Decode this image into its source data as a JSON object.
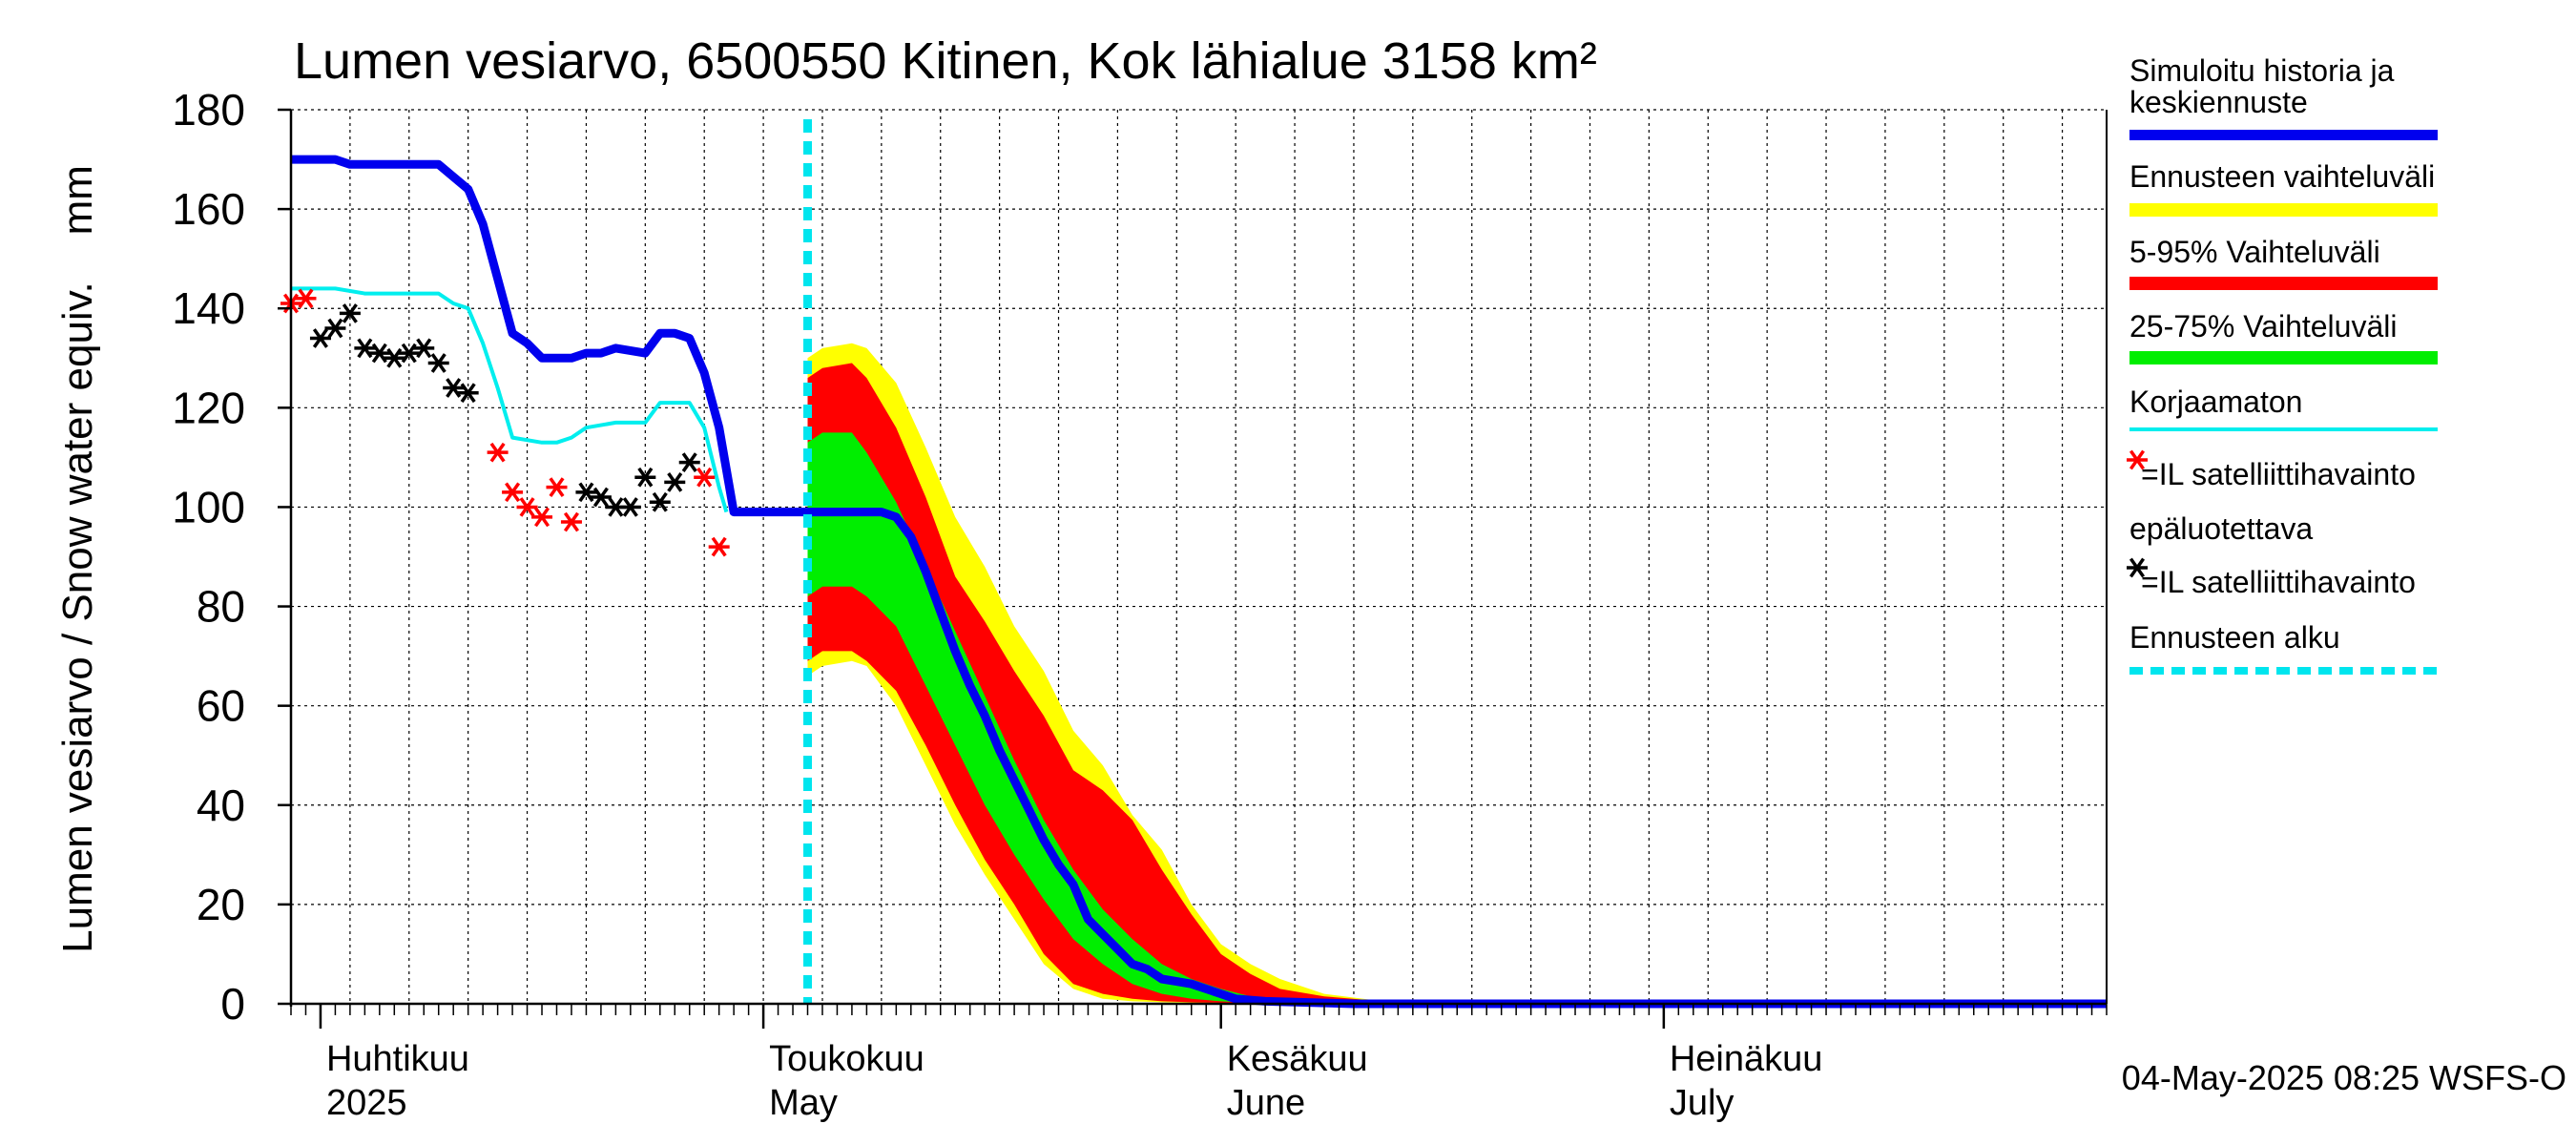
{
  "chart_data": {
    "type": "line",
    "title": "Lumen vesiarvo, 6500550 Kitinen, Kok lähialue 3158 km²",
    "ylabel": "Lumen vesiarvo / Snow water equiv.    mm",
    "ylim": [
      0,
      180
    ],
    "yticks": [
      0,
      20,
      40,
      60,
      80,
      100,
      120,
      140,
      160,
      180
    ],
    "xlim": [
      "2025-03-30",
      "2025-07-31"
    ],
    "grid": true,
    "month_labels": [
      {
        "fi": "Huhtikuu",
        "en": "2025",
        "date": "2025-04-01"
      },
      {
        "fi": "Toukokuu",
        "en": "May",
        "date": "2025-05-01"
      },
      {
        "fi": "Kesäkuu",
        "en": "June",
        "date": "2025-06-01"
      },
      {
        "fi": "Heinäkuu",
        "en": "July",
        "date": "2025-07-01"
      }
    ],
    "forecast_start": "2025-05-04",
    "footer": "04-May-2025 08:25 WSFS-O",
    "legend": [
      {
        "label": "Simuloitu historia ja keskiennuste",
        "color": "#0000ee",
        "kind": "thick-line"
      },
      {
        "label": "Ennusteen vaihteluväli",
        "color": "#ffff00",
        "kind": "band"
      },
      {
        "label": "5-95% Vaihteluväli",
        "color": "#ff0000",
        "kind": "band"
      },
      {
        "label": "25-75% Vaihteluväli",
        "color": "#00ee00",
        "kind": "band"
      },
      {
        "label": "Korjaamaton",
        "color": "#00eeee",
        "kind": "line"
      },
      {
        "label": "=IL satelliittihavainto epäluotettava",
        "color": "#ff0000",
        "kind": "marker"
      },
      {
        "label": "=IL satelliittihavainto",
        "color": "#000000",
        "kind": "marker"
      },
      {
        "label": "Ennusteen alku",
        "color": "#00e5ee",
        "kind": "dashed"
      }
    ],
    "series": [
      {
        "name": "Simuloitu historia ja keskiennuste",
        "color": "#0000ee",
        "points": [
          [
            "2025-03-30",
            170
          ],
          [
            "2025-04-01",
            170
          ],
          [
            "2025-04-02",
            170
          ],
          [
            "2025-04-03",
            169
          ],
          [
            "2025-04-06",
            169
          ],
          [
            "2025-04-08",
            169
          ],
          [
            "2025-04-09",
            169
          ],
          [
            "2025-04-11",
            164
          ],
          [
            "2025-04-12",
            157
          ],
          [
            "2025-04-13",
            146
          ],
          [
            "2025-04-14",
            135
          ],
          [
            "2025-04-15",
            133
          ],
          [
            "2025-04-16",
            130
          ],
          [
            "2025-04-18",
            130
          ],
          [
            "2025-04-19",
            131
          ],
          [
            "2025-04-20",
            131
          ],
          [
            "2025-04-21",
            132
          ],
          [
            "2025-04-23",
            131
          ],
          [
            "2025-04-24",
            135
          ],
          [
            "2025-04-25",
            135
          ],
          [
            "2025-04-26",
            134
          ],
          [
            "2025-04-27",
            127
          ],
          [
            "2025-04-28",
            116
          ],
          [
            "2025-04-29",
            99
          ],
          [
            "2025-05-01",
            99
          ],
          [
            "2025-05-02",
            99
          ],
          [
            "2025-05-03",
            99
          ],
          [
            "2025-05-04",
            99
          ],
          [
            "2025-05-05",
            99
          ],
          [
            "2025-05-06",
            99
          ],
          [
            "2025-05-07",
            99
          ],
          [
            "2025-05-08",
            99
          ],
          [
            "2025-05-09",
            99
          ],
          [
            "2025-05-10",
            98
          ],
          [
            "2025-05-11",
            94
          ],
          [
            "2025-05-12",
            87
          ],
          [
            "2025-05-13",
            79
          ],
          [
            "2025-05-14",
            71
          ],
          [
            "2025-05-15",
            64
          ],
          [
            "2025-05-16",
            58
          ],
          [
            "2025-05-17",
            51
          ],
          [
            "2025-05-18",
            45
          ],
          [
            "2025-05-19",
            39
          ],
          [
            "2025-05-20",
            33
          ],
          [
            "2025-05-21",
            28
          ],
          [
            "2025-05-22",
            24
          ],
          [
            "2025-05-23",
            17
          ],
          [
            "2025-05-24",
            14
          ],
          [
            "2025-05-25",
            11
          ],
          [
            "2025-05-26",
            8
          ],
          [
            "2025-05-27",
            7
          ],
          [
            "2025-05-28",
            5
          ],
          [
            "2025-05-29",
            4.5
          ],
          [
            "2025-05-30",
            4
          ],
          [
            "2025-05-31",
            3
          ],
          [
            "2025-06-01",
            2
          ],
          [
            "2025-06-02",
            1
          ],
          [
            "2025-06-04",
            0.5
          ],
          [
            "2025-06-10",
            0
          ],
          [
            "2025-07-31",
            0
          ]
        ]
      },
      {
        "name": "Korjaamaton",
        "color": "#00eeee",
        "points": [
          [
            "2025-03-30",
            144
          ],
          [
            "2025-04-01",
            144
          ],
          [
            "2025-04-02",
            144
          ],
          [
            "2025-04-04",
            143
          ],
          [
            "2025-04-06",
            143
          ],
          [
            "2025-04-08",
            143
          ],
          [
            "2025-04-09",
            143
          ],
          [
            "2025-04-10",
            141
          ],
          [
            "2025-04-11",
            140
          ],
          [
            "2025-04-12",
            133
          ],
          [
            "2025-04-13",
            124
          ],
          [
            "2025-04-14",
            114
          ],
          [
            "2025-04-16",
            113
          ],
          [
            "2025-04-17",
            113
          ],
          [
            "2025-04-18",
            114
          ],
          [
            "2025-04-19",
            116
          ],
          [
            "2025-04-21",
            117
          ],
          [
            "2025-04-23",
            117
          ],
          [
            "2025-04-24",
            121
          ],
          [
            "2025-04-26",
            121
          ],
          [
            "2025-04-27",
            116
          ],
          [
            "2025-04-28",
            104
          ],
          [
            "2025-04-28.5",
            99
          ]
        ]
      }
    ],
    "bands": [
      {
        "name": "Ennusteen vaihteluväli",
        "color": "#ffff00",
        "x": [
          "2025-05-04",
          "2025-05-05",
          "2025-05-07",
          "2025-05-08",
          "2025-05-10",
          "2025-05-12",
          "2025-05-14",
          "2025-05-16",
          "2025-05-18",
          "2025-05-20",
          "2025-05-22",
          "2025-05-24",
          "2025-05-26",
          "2025-05-28",
          "2025-05-30",
          "2025-06-01",
          "2025-06-03",
          "2025-06-05",
          "2025-06-08",
          "2025-06-12",
          "2025-06-16"
        ],
        "upper": [
          130,
          132,
          133,
          132,
          125,
          112,
          98,
          88,
          76,
          67,
          55,
          48,
          38,
          31,
          20,
          12,
          8,
          5,
          2,
          0.5,
          0
        ],
        "lower": [
          66,
          68,
          69,
          68,
          60,
          48,
          36,
          26,
          17,
          8,
          3,
          1,
          0.5,
          0.3,
          0.2,
          0.1,
          0,
          0,
          0,
          0,
          0
        ]
      },
      {
        "name": "5-95% Vaihteluväli",
        "color": "#ff0000",
        "x": [
          "2025-05-04",
          "2025-05-05",
          "2025-05-07",
          "2025-05-08",
          "2025-05-10",
          "2025-05-12",
          "2025-05-14",
          "2025-05-16",
          "2025-05-18",
          "2025-05-20",
          "2025-05-22",
          "2025-05-24",
          "2025-05-26",
          "2025-05-28",
          "2025-05-30",
          "2025-06-01",
          "2025-06-03",
          "2025-06-05",
          "2025-06-08",
          "2025-06-12",
          "2025-06-16"
        ],
        "upper": [
          126,
          128,
          129,
          126,
          116,
          102,
          86,
          77,
          67,
          58,
          47,
          43,
          37,
          27,
          18,
          10,
          6,
          3,
          1.5,
          0.5,
          0
        ],
        "lower": [
          69,
          71,
          71,
          69,
          63,
          52,
          40,
          29,
          20,
          10,
          4,
          2,
          1,
          0.5,
          0.3,
          0.2,
          0,
          0,
          0,
          0,
          0
        ]
      },
      {
        "name": "25-75% Vaihteluväli",
        "color": "#00ee00",
        "x": [
          "2025-05-04",
          "2025-05-05",
          "2025-05-07",
          "2025-05-08",
          "2025-05-10",
          "2025-05-12",
          "2025-05-14",
          "2025-05-16",
          "2025-05-18",
          "2025-05-20",
          "2025-05-22",
          "2025-05-24",
          "2025-05-26",
          "2025-05-28",
          "2025-05-30",
          "2025-06-01",
          "2025-06-03",
          "2025-06-05",
          "2025-06-08",
          "2025-06-12"
        ],
        "upper": [
          113,
          115,
          115,
          111,
          101,
          88,
          75,
          62,
          49,
          37,
          27,
          19,
          13,
          8,
          5,
          3,
          1.5,
          0.8,
          0.3,
          0
        ],
        "lower": [
          82,
          84,
          84,
          82,
          76,
          64,
          52,
          40,
          30,
          21,
          13,
          8,
          4,
          2,
          1,
          0.5,
          0.2,
          0,
          0,
          0
        ]
      }
    ],
    "observations_unreliable": {
      "label": "=IL satelliittihavainto epäluotettava",
      "color": "#ff0000",
      "points": [
        [
          "2025-03-30",
          141
        ],
        [
          "2025-03-31",
          142
        ],
        [
          "2025-04-13",
          111
        ],
        [
          "2025-04-14",
          103
        ],
        [
          "2025-04-15",
          100
        ],
        [
          "2025-04-16",
          98
        ],
        [
          "2025-04-17",
          104
        ],
        [
          "2025-04-18",
          97
        ],
        [
          "2025-04-27",
          106
        ],
        [
          "2025-04-28",
          92
        ]
      ]
    },
    "observations": {
      "label": "=IL satelliittihavainto",
      "color": "#000000",
      "points": [
        [
          "2025-04-01",
          134
        ],
        [
          "2025-04-02",
          136
        ],
        [
          "2025-04-03",
          139
        ],
        [
          "2025-04-04",
          132
        ],
        [
          "2025-04-05",
          131
        ],
        [
          "2025-04-06",
          130
        ],
        [
          "2025-04-07",
          131
        ],
        [
          "2025-04-08",
          132
        ],
        [
          "2025-04-09",
          129
        ],
        [
          "2025-04-10",
          124
        ],
        [
          "2025-04-11",
          123
        ],
        [
          "2025-04-19",
          103
        ],
        [
          "2025-04-20",
          102
        ],
        [
          "2025-04-21",
          100
        ],
        [
          "2025-04-22",
          100
        ],
        [
          "2025-04-23",
          106
        ],
        [
          "2025-04-24",
          101
        ],
        [
          "2025-04-25",
          105
        ],
        [
          "2025-04-26",
          109
        ]
      ]
    }
  }
}
